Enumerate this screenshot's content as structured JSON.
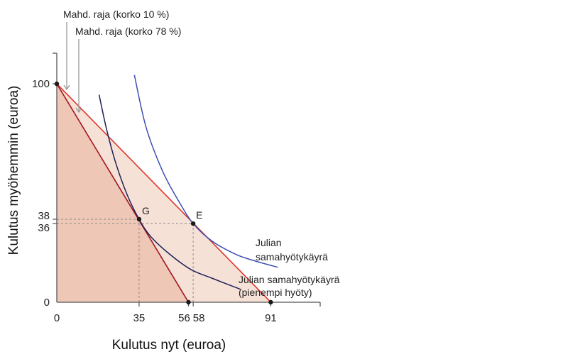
{
  "chart_data": {
    "type": "line",
    "xlabel": "Kulutus nyt (euroa)",
    "ylabel": "Kulutus myöhemmin (euroa)",
    "xlim": [
      0,
      112
    ],
    "ylim": [
      0,
      114
    ],
    "x_ticks": [
      0,
      35,
      56,
      58,
      91
    ],
    "y_ticks": [
      0,
      36,
      38,
      100
    ],
    "budget_lines": [
      {
        "name": "Mahd. raja (korko 10 %)",
        "x": [
          0,
          91
        ],
        "y": [
          100,
          0
        ],
        "color": "#e0352b",
        "fill": "#f6e1d7"
      },
      {
        "name": "Mahd. raja (korko 78 %)",
        "x": [
          0,
          56
        ],
        "y": [
          100,
          0
        ],
        "color": "#a3141f",
        "fill": "#efc7b6"
      }
    ],
    "indifference_curves": [
      {
        "name": "Julian samahyötykäyrä",
        "color": "#3d4fb0",
        "points": [
          [
            33,
            104
          ],
          [
            38,
            80
          ],
          [
            45,
            60
          ],
          [
            52,
            46
          ],
          [
            58,
            36
          ],
          [
            66,
            28
          ],
          [
            76,
            22
          ],
          [
            84,
            19
          ],
          [
            94,
            16
          ]
        ]
      },
      {
        "name": "Julian samahyötykäyrä (pienempi hyöty)",
        "color": "#1d2057",
        "points": [
          [
            18,
            95
          ],
          [
            21,
            80
          ],
          [
            25,
            64
          ],
          [
            30,
            49
          ],
          [
            35,
            38
          ],
          [
            40,
            30
          ],
          [
            48,
            22
          ],
          [
            57,
            15
          ],
          [
            66,
            11
          ],
          [
            78,
            6
          ]
        ]
      }
    ],
    "points": [
      {
        "label": "G",
        "x": 35,
        "y": 38
      },
      {
        "label": "E",
        "x": 58,
        "y": 36
      },
      {
        "label": "",
        "x": 0,
        "y": 100
      },
      {
        "label": "",
        "x": 56,
        "y": 0
      },
      {
        "label": "",
        "x": 91,
        "y": 0
      }
    ],
    "annotations": {
      "budget_high_label": "Mahd. raja (korko 10 %)",
      "budget_low_label": "Mahd. raja (korko 78 %)",
      "curve_high_line1": "Julian",
      "curve_high_line2": "samahyötykäyrä",
      "curve_low_line1": "Julian samahyötykäyrä",
      "curve_low_line2": "(pienempi hyöty)"
    },
    "grid": false
  }
}
